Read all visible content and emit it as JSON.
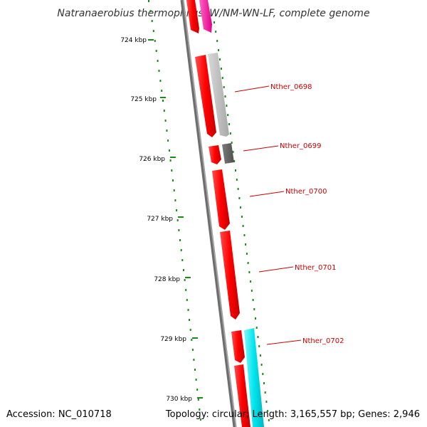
{
  "title": "Natranaerobius thermophilus JW/NM-WN-LF, complete genome",
  "footer": {
    "accession": "Accession: NC_010718",
    "summary": "Topology: circular; Length: 3,165,557 bp; Genes: 2,946"
  },
  "kbp_labels": [
    "724 kbp",
    "725 kbp",
    "726 kbp",
    "727 kbp",
    "728 kbp",
    "729 kbp",
    "730 kbp"
  ],
  "gene_labels": [
    "Nther_0698",
    "Nther_0699",
    "Nther_0700",
    "Nther_0701",
    "Nther_0702"
  ],
  "colors": {
    "gene_red": "#ff0000",
    "gene_magenta": "#ff1aa3",
    "gene_gray_light": "#c0c0c0",
    "gene_gray_dark": "#666666",
    "gene_cyan": "#00e5ee",
    "backbone": "#808080",
    "tick_green": "#1a8a1a",
    "label_red": "#cc0000"
  }
}
